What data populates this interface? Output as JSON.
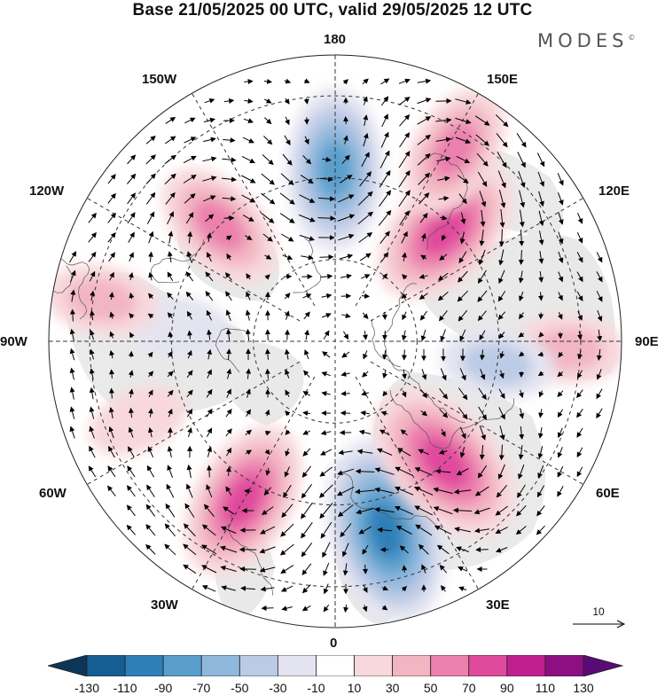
{
  "title": "Base 21/05/2025 00 UTC, valid 29/05/2025 12 UTC",
  "brand": "MODES",
  "brand_mark": "©",
  "longitude_labels": {
    "top": "180",
    "bottom": "0",
    "left": "90W",
    "right": "90E",
    "upper_left_1": "150W",
    "upper_left_2": "120W",
    "upper_right_1": "150E",
    "upper_right_2": "120E",
    "lower_left_1": "60W",
    "lower_left_2": "30W",
    "lower_right_1": "60E",
    "lower_right_2": "30E"
  },
  "vector_reference": {
    "label": "10"
  },
  "colorbar": {
    "labels": [
      "-130",
      "-110",
      "-90",
      "-70",
      "-50",
      "-30",
      "-10",
      "10",
      "30",
      "50",
      "70",
      "90",
      "110",
      "130"
    ],
    "colors": [
      "#0d3557",
      "#155e93",
      "#2e7fb8",
      "#5a9fcc",
      "#8fb8dc",
      "#bccbe5",
      "#e4e4f1",
      "#ffffff",
      "#f8d8dc",
      "#f2b5c2",
      "#ec80ae",
      "#e04a9c",
      "#c0208f",
      "#8e0f82",
      "#5a0a75"
    ]
  },
  "anomaly_centers": [
    {
      "lon": 180,
      "lat": 48,
      "value": -80
    },
    {
      "lon": 135,
      "lat": 52,
      "value": 80
    },
    {
      "lon": 148,
      "lat": 35,
      "value": 60
    },
    {
      "lon": 225,
      "lat": 50,
      "value": 60
    },
    {
      "lon": 330,
      "lat": 45,
      "value": 80
    },
    {
      "lon": 15,
      "lat": 42,
      "value": -100
    },
    {
      "lon": 42,
      "lat": 50,
      "value": 90
    },
    {
      "lon": 88,
      "lat": 33,
      "value": 40
    },
    {
      "lon": 292,
      "lat": 38,
      "value": 30
    },
    {
      "lon": 82,
      "lat": 50,
      "value": -40
    },
    {
      "lon": 265,
      "lat": 52,
      "value": -30
    },
    {
      "lon": 260,
      "lat": 32,
      "value": 40
    }
  ]
}
